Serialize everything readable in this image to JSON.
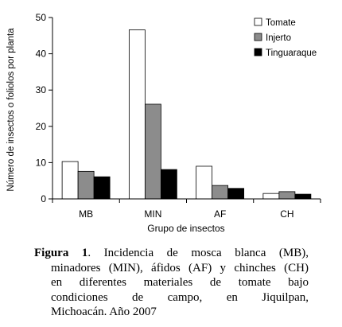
{
  "chart_data": {
    "type": "bar",
    "title": "",
    "xlabel": "Grupo de insectos",
    "ylabel": "Número de insectos o foliolos por planta",
    "categories": [
      "MB",
      "MIN",
      "AF",
      "CH"
    ],
    "series": [
      {
        "name": "Tomate",
        "values": [
          10.3,
          46.6,
          9.0,
          1.5
        ],
        "color": "#ffffff"
      },
      {
        "name": "Injerto",
        "values": [
          7.6,
          26.1,
          3.7,
          2.0
        ],
        "color": "#8c8c8c"
      },
      {
        "name": "Tinguaraque",
        "values": [
          6.1,
          8.1,
          2.9,
          1.3
        ],
        "color": "#000000"
      }
    ],
    "ylim": [
      0,
      50
    ],
    "yticks": [
      "0",
      "10",
      "20",
      "30",
      "40",
      "50"
    ],
    "grid": false,
    "legend_placement": "top-right"
  },
  "caption": {
    "label": "Figura 1",
    "lines": [
      ". Incidencia de mosca blanca (MB),",
      "minadores (MIN), áfidos (AF) y chinches (CH)",
      "en diferentes materiales de tomate bajo",
      "condiciones de campo, en Jiquilpan,",
      "Michoacán. Año 2007"
    ]
  }
}
